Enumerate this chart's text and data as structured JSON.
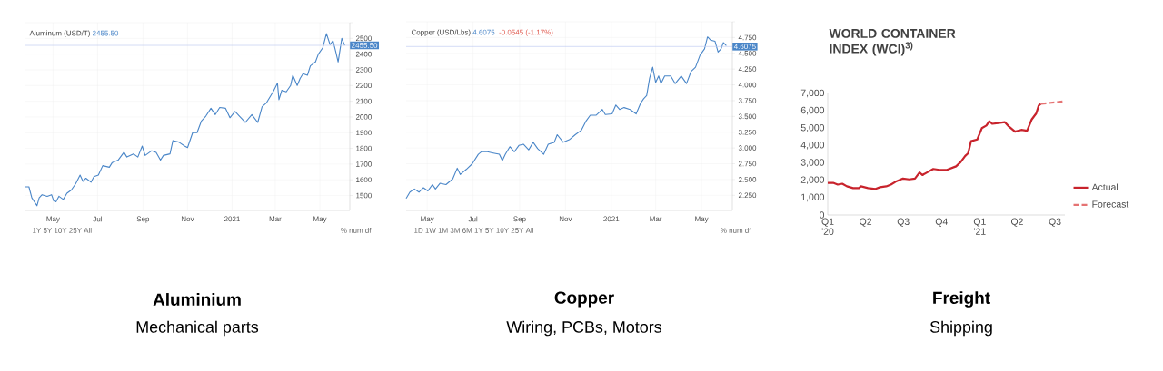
{
  "chart_data": [
    {
      "type": "line",
      "title": "Aluminum (USD/T)",
      "color": "#4a86c8",
      "grid": true,
      "x": [
        "2020-03-23",
        "2020-03-29",
        "2020-04-02",
        "2020-04-09",
        "2020-04-12",
        "2020-04-16",
        "2020-04-23",
        "2020-04-29",
        "2020-05-02",
        "2020-05-05",
        "2020-05-09",
        "2020-05-15",
        "2020-05-20",
        "2020-05-26",
        "2020-06-01",
        "2020-06-07",
        "2020-06-11",
        "2020-06-15",
        "2020-06-22",
        "2020-06-26",
        "2020-07-02",
        "2020-07-08",
        "2020-07-17",
        "2020-07-21",
        "2020-07-29",
        "2020-08-06",
        "2020-08-10",
        "2020-08-19",
        "2020-08-25",
        "2020-08-31",
        "2020-09-04",
        "2020-09-13",
        "2020-09-19",
        "2020-09-25",
        "2020-09-29",
        "2020-10-08",
        "2020-10-12",
        "2020-10-20",
        "2020-10-28",
        "2020-11-01",
        "2020-11-08",
        "2020-11-14",
        "2020-11-20",
        "2020-11-26",
        "2020-12-03",
        "2020-12-09",
        "2020-12-15",
        "2020-12-23",
        "2020-12-29",
        "2021-01-05",
        "2021-01-11",
        "2021-01-19",
        "2021-01-28",
        "2021-02-05",
        "2021-02-11",
        "2021-02-17",
        "2021-02-26",
        "2021-03-04",
        "2021-03-06",
        "2021-03-10",
        "2021-03-16",
        "2021-03-22",
        "2021-03-25",
        "2021-03-31",
        "2021-04-04",
        "2021-04-08",
        "2021-04-14",
        "2021-04-18",
        "2021-04-25",
        "2021-04-29",
        "2021-05-05",
        "2021-05-10",
        "2021-05-15",
        "2021-05-19",
        "2021-05-23",
        "2021-05-26",
        "2021-05-31",
        "2021-06-04"
      ],
      "values": [
        1555,
        1555,
        1485,
        1435,
        1485,
        1505,
        1495,
        1505,
        1465,
        1460,
        1495,
        1475,
        1515,
        1535,
        1575,
        1630,
        1590,
        1610,
        1585,
        1620,
        1630,
        1690,
        1680,
        1710,
        1725,
        1775,
        1745,
        1765,
        1745,
        1815,
        1755,
        1785,
        1775,
        1725,
        1755,
        1765,
        1850,
        1840,
        1815,
        1805,
        1900,
        1900,
        1975,
        2005,
        2055,
        2015,
        2060,
        2055,
        1995,
        2035,
        2005,
        1965,
        2015,
        1965,
        2065,
        2090,
        2160,
        2215,
        2110,
        2170,
        2160,
        2200,
        2265,
        2200,
        2245,
        2275,
        2265,
        2325,
        2350,
        2400,
        2440,
        2530,
        2460,
        2485,
        2410,
        2350,
        2500,
        2455
      ],
      "xlim": [
        "2020-03-23",
        "2021-06-11"
      ],
      "ylim": [
        1405,
        2600
      ],
      "xticks": [
        {
          "value": "2020-05-01",
          "label": "May"
        },
        {
          "value": "2020-07-01",
          "label": "Jul"
        },
        {
          "value": "2020-09-01",
          "label": "Sep"
        },
        {
          "value": "2020-11-01",
          "label": "Nov"
        },
        {
          "value": "2021-01-01",
          "label": "2021"
        },
        {
          "value": "2021-03-01",
          "label": "Mar"
        },
        {
          "value": "2021-05-01",
          "label": "May"
        }
      ],
      "yticks": [
        1500,
        1600,
        1700,
        1800,
        1900,
        2000,
        2100,
        2200,
        2300,
        2400,
        2500,
        {
          "value": 2600,
          "label": null
        }
      ],
      "ref_lines": [
        {
          "axis": "y",
          "value": 2455.5,
          "label": "2455.50",
          "color": "#c3cdf2"
        }
      ],
      "annotations": [
        "2455.50",
        "1Y 5Y 10Y 25Y All",
        "% num df",
        "Aluminium",
        "Mechanical parts"
      ]
    },
    {
      "type": "line",
      "title": "Copper (USD/Lbs)",
      "color": "#4a86c8",
      "grid": true,
      "x": [
        "2020-04-03",
        "2020-04-08",
        "2020-04-14",
        "2020-04-20",
        "2020-04-26",
        "2020-05-02",
        "2020-05-08",
        "2020-05-12",
        "2020-05-18",
        "2020-05-26",
        "2020-06-04",
        "2020-06-10",
        "2020-06-14",
        "2020-06-22",
        "2020-06-30",
        "2020-07-08",
        "2020-07-12",
        "2020-07-20",
        "2020-07-28",
        "2020-08-05",
        "2020-08-09",
        "2020-08-13",
        "2020-08-19",
        "2020-08-25",
        "2020-08-31",
        "2020-09-06",
        "2020-09-13",
        "2020-09-19",
        "2020-09-25",
        "2020-10-03",
        "2020-10-09",
        "2020-10-17",
        "2020-10-21",
        "2020-10-29",
        "2020-11-06",
        "2020-11-14",
        "2020-11-22",
        "2020-11-28",
        "2020-12-04",
        "2020-12-12",
        "2020-12-20",
        "2020-12-24",
        "2021-01-02",
        "2021-01-07",
        "2021-01-12",
        "2021-01-18",
        "2021-01-26",
        "2021-02-03",
        "2021-02-09",
        "2021-02-13",
        "2021-02-17",
        "2021-02-21",
        "2021-02-25",
        "2021-03-01",
        "2021-03-05",
        "2021-03-08",
        "2021-03-13",
        "2021-03-21",
        "2021-03-27",
        "2021-04-04",
        "2021-04-11",
        "2021-04-17",
        "2021-04-23",
        "2021-04-29",
        "2021-05-05",
        "2021-05-09",
        "2021-05-13",
        "2021-05-19",
        "2021-05-23",
        "2021-05-27",
        "2021-05-30",
        "2021-06-03"
      ],
      "values": [
        2.2,
        2.3,
        2.35,
        2.3,
        2.37,
        2.32,
        2.42,
        2.35,
        2.44,
        2.42,
        2.51,
        2.68,
        2.58,
        2.66,
        2.75,
        2.9,
        2.94,
        2.94,
        2.92,
        2.9,
        2.8,
        2.9,
        3.02,
        2.94,
        3.04,
        3.06,
        2.97,
        3.09,
        2.99,
        2.9,
        3.06,
        3.09,
        3.21,
        3.09,
        3.13,
        3.21,
        3.28,
        3.42,
        3.52,
        3.52,
        3.61,
        3.53,
        3.54,
        3.68,
        3.61,
        3.64,
        3.61,
        3.54,
        3.71,
        3.78,
        3.83,
        4.11,
        4.28,
        4.04,
        4.14,
        4.02,
        4.14,
        4.14,
        4.02,
        4.14,
        4.02,
        4.21,
        4.28,
        4.47,
        4.57,
        4.76,
        4.71,
        4.69,
        4.52,
        4.57,
        4.67,
        4.62
      ],
      "xlim": [
        "2020-04-03",
        "2021-06-11"
      ],
      "ylim": [
        2.01,
        5.0
      ],
      "xticks": [
        {
          "value": "2020-05-01",
          "label": "May"
        },
        {
          "value": "2020-07-01",
          "label": "Jul"
        },
        {
          "value": "2020-09-01",
          "label": "Sep"
        },
        {
          "value": "2020-11-01",
          "label": "Nov"
        },
        {
          "value": "2021-01-01",
          "label": "2021"
        },
        {
          "value": "2021-03-01",
          "label": "Mar"
        },
        {
          "value": "2021-05-01",
          "label": "May"
        }
      ],
      "yticks": [
        {
          "value": 2.25,
          "label": "2.250"
        },
        {
          "value": 2.5,
          "label": "2.500"
        },
        {
          "value": 2.75,
          "label": "2.750"
        },
        {
          "value": 3.0,
          "label": "3.000"
        },
        {
          "value": 3.25,
          "label": "3.250"
        },
        {
          "value": 3.5,
          "label": "3.500"
        },
        {
          "value": 3.75,
          "label": "3.750"
        },
        {
          "value": 4.0,
          "label": "4.000"
        },
        {
          "value": 4.25,
          "label": "4.250"
        },
        {
          "value": 4.5,
          "label": "4.500"
        },
        {
          "value": 4.75,
          "label": "4.750"
        },
        {
          "value": 5.0,
          "label": null
        }
      ],
      "ref_lines": [
        {
          "axis": "y",
          "value": 4.6075,
          "label": "4.6075",
          "color": "#c3cdf2"
        }
      ],
      "annotations": [
        "4.6075",
        "-0.0545 (-1.17%)",
        "1D 1W 1M 3M 6M 1Y 5Y 10Y 25Y All",
        "% num df",
        "Copper",
        "Wiring, PCBs, Motors"
      ]
    },
    {
      "type": "line",
      "title": "WORLD CONTAINER INDEX (WCI)$^{3)}$",
      "legend": "bottom right",
      "series": [
        {
          "name": "Actual",
          "color": "#c8232c",
          "x": [
            "2020-01-01",
            "2020-01-14",
            "2020-01-25",
            "2020-02-05",
            "2020-02-16",
            "2020-03-02",
            "2020-03-16",
            "2020-03-21",
            "2020-04-07",
            "2020-04-25",
            "2020-05-06",
            "2020-05-21",
            "2020-06-01",
            "2020-06-15",
            "2020-06-30",
            "2020-07-15",
            "2020-07-29",
            "2020-08-09",
            "2020-08-16",
            "2020-08-27",
            "2020-09-11",
            "2020-09-26",
            "2020-10-14",
            "2020-11-05",
            "2020-11-16",
            "2020-11-27",
            "2020-12-04",
            "2020-12-11",
            "2020-12-26",
            "2021-01-06",
            "2021-01-17",
            "2021-01-24",
            "2021-01-31",
            "2021-02-15",
            "2021-03-02",
            "2021-03-12",
            "2021-03-27",
            "2021-04-11",
            "2021-04-25",
            "2021-05-06",
            "2021-05-17",
            "2021-05-23",
            "2021-05-28"
          ],
          "values": [
            1850,
            1850,
            1750,
            1800,
            1650,
            1550,
            1550,
            1650,
            1550,
            1500,
            1600,
            1650,
            1750,
            1950,
            2100,
            2050,
            2100,
            2450,
            2300,
            2450,
            2650,
            2600,
            2600,
            2800,
            3050,
            3400,
            3550,
            4250,
            4350,
            5000,
            5150,
            5400,
            5250,
            5300,
            5350,
            5100,
            4800,
            4900,
            4850,
            5500,
            5850,
            6300,
            6400
          ]
        },
        {
          "name": "Forecast",
          "color": "#e57373",
          "line_style": "dashed",
          "x": [
            "2021-05-28",
            "2021-07-25"
          ],
          "values": [
            6400,
            6550
          ]
        }
      ],
      "xlim": [
        "2020-01-01",
        "2021-07-25"
      ],
      "ylim": [
        0,
        7000
      ],
      "xticks": [
        {
          "value": "2020-01-01",
          "label": "Q1 '20"
        },
        {
          "value": "2020-04-01",
          "label": "Q2"
        },
        {
          "value": "2020-07-01",
          "label": "Q3"
        },
        {
          "value": "2020-10-01",
          "label": "Q4"
        },
        {
          "value": "2021-01-01",
          "label": "Q1 '21"
        },
        {
          "value": "2021-04-01",
          "label": "Q2"
        },
        {
          "value": "2021-07-01",
          "label": "Q3"
        }
      ],
      "yticks": [
        0,
        {
          "value": 1000,
          "label": "1,000"
        },
        {
          "value": 2000,
          "label": "2,000"
        },
        {
          "value": 3000,
          "label": "3,000"
        },
        {
          "value": 4000,
          "label": "4,000"
        },
        {
          "value": 5000,
          "label": "5,000"
        },
        {
          "value": 6000,
          "label": "6,000"
        },
        {
          "value": 7000,
          "label": "7,000"
        }
      ],
      "annotations": [
        "Freight",
        "Shipping"
      ]
    }
  ]
}
